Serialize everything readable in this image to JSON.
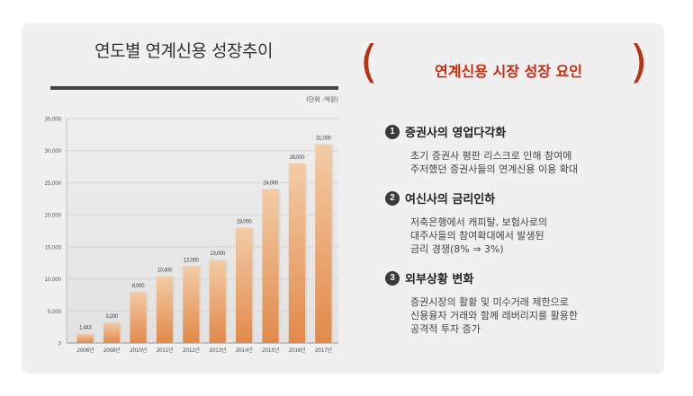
{
  "chart_data": {
    "type": "bar",
    "title": "연도별 연계신용 성장추이",
    "unit": "(단위 :억원)",
    "categories": [
      "2006년",
      "2008년",
      "2010년",
      "2011년",
      "2012년",
      "2013년",
      "2014년",
      "2015년",
      "2016년",
      "2017년"
    ],
    "values": [
      1443,
      3200,
      8000,
      10400,
      12000,
      13000,
      18000,
      24000,
      28000,
      31000
    ],
    "value_labels": [
      "1,443",
      "3,200",
      "8,000",
      "10,400",
      "12,000",
      "13,000",
      "18,000",
      "24,000",
      "28,000",
      "31,000"
    ],
    "yticks": [
      0,
      5000,
      10000,
      15000,
      20000,
      25000,
      30000,
      35000
    ],
    "ytick_labels": [
      "0",
      "5,000",
      "10,000",
      "15,000",
      "20,000",
      "25,000",
      "30,000",
      "35,000"
    ],
    "ylim": [
      0,
      35000
    ],
    "grid": true
  },
  "right": {
    "title": "연계신용 시장 성장 요인",
    "factors": [
      {
        "num": "1",
        "title": "증권사의 영업다각화",
        "lines": [
          "초기 증권사 평판 리스크로 인해 참여에",
          "주저했던 증권사들의 연계신용 이용 확대"
        ]
      },
      {
        "num": "2",
        "title": "여신사의 금리인하",
        "lines": [
          "저축은행에서 캐피탈, 보험사로의",
          "대주사들의 참여확대에서 발생된",
          "금리 경쟁(8% ⇒ 3%)"
        ]
      },
      {
        "num": "3",
        "title": "외부상황 변화",
        "lines": [
          "증권시장의 활황 및 미수거래 제한으로",
          "신용융자 거래와 함께 레버리지를 활용한",
          "공격적 투자 증가"
        ]
      }
    ]
  },
  "colors": {
    "accent": "#cc2a0c",
    "bar_top": "#f3c9a2",
    "bar_bottom": "#e08a4e"
  }
}
